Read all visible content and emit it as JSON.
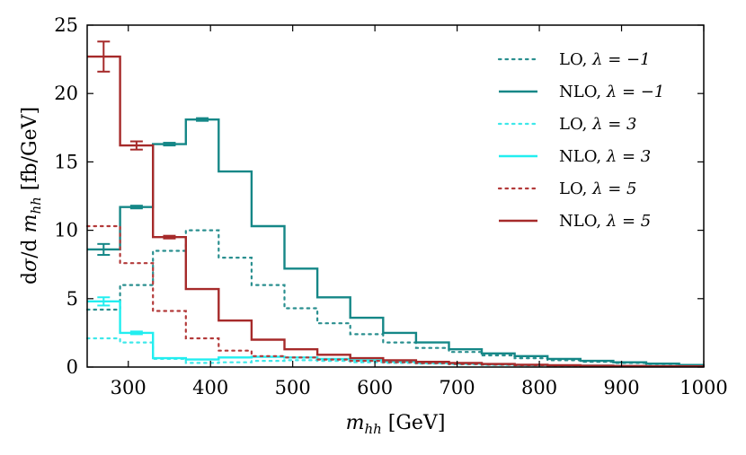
{
  "chart_data": {
    "type": "line",
    "style": "step-histogram",
    "xlabel": "m_hh [GeV]",
    "ylabel": "dσ/d m_hh [fb/GeV]",
    "xlim": [
      250,
      1000
    ],
    "ylim": [
      0,
      25
    ],
    "xticks": [
      300,
      400,
      500,
      600,
      700,
      800,
      900,
      1000
    ],
    "yticks": [
      0,
      5,
      10,
      15,
      20,
      25
    ],
    "grid": false,
    "legend_position": "top-right",
    "bin_edges": [
      250,
      290,
      330,
      370,
      410,
      450,
      490,
      530,
      570,
      610,
      650,
      690,
      730,
      770,
      810,
      850,
      890,
      930,
      970,
      1000
    ],
    "series": [
      {
        "name": "LO, λ = −1",
        "label_main": "LO,",
        "label_lambda": "λ = −1",
        "color": "#2a8f8f",
        "dashed": true,
        "values": [
          4.2,
          6.0,
          8.5,
          10.0,
          8.0,
          6.0,
          4.3,
          3.2,
          2.4,
          1.8,
          1.4,
          1.1,
          0.85,
          0.65,
          0.5,
          0.38,
          0.3,
          0.22,
          0.15
        ]
      },
      {
        "name": "NLO, λ = −1",
        "label_main": "NLO,",
        "label_lambda": "λ = −1",
        "color": "#158787",
        "dashed": false,
        "values": [
          8.6,
          11.7,
          16.3,
          18.1,
          14.3,
          10.3,
          7.2,
          5.1,
          3.6,
          2.5,
          1.8,
          1.3,
          1.0,
          0.8,
          0.6,
          0.45,
          0.35,
          0.25,
          0.15
        ],
        "errors": [
          0.4,
          0.1,
          0.1,
          0.1,
          0,
          0,
          0,
          0,
          0,
          0,
          0,
          0,
          0,
          0,
          0,
          0,
          0,
          0,
          0
        ]
      },
      {
        "name": "LO, λ = 3",
        "label_main": "LO,",
        "label_lambda": "λ = 3",
        "color": "#3ee8ea",
        "dashed": true,
        "values": [
          2.1,
          1.8,
          0.6,
          0.3,
          0.35,
          0.45,
          0.5,
          0.45,
          0.35,
          0.3,
          0.25,
          0.2,
          0.15,
          0.12,
          0.1,
          0.08,
          0.06,
          0.05,
          0.04
        ]
      },
      {
        "name": "NLO, λ = 3",
        "label_main": "NLO,",
        "label_lambda": "λ = 3",
        "color": "#22eef0",
        "dashed": false,
        "values": [
          4.8,
          2.5,
          0.65,
          0.55,
          0.7,
          0.75,
          0.7,
          0.6,
          0.5,
          0.4,
          0.3,
          0.25,
          0.2,
          0.15,
          0.12,
          0.1,
          0.08,
          0.06,
          0.05
        ],
        "errors": [
          0.3,
          0.1,
          0,
          0,
          0,
          0,
          0,
          0,
          0,
          0,
          0,
          0,
          0,
          0,
          0,
          0,
          0,
          0,
          0
        ]
      },
      {
        "name": "LO, λ = 5",
        "label_main": "LO,",
        "label_lambda": "λ = 5",
        "color": "#b33a3a",
        "dashed": true,
        "values": [
          10.3,
          7.6,
          4.1,
          2.1,
          1.2,
          0.8,
          0.7,
          0.55,
          0.45,
          0.35,
          0.28,
          0.22,
          0.18,
          0.14,
          0.11,
          0.09,
          0.07,
          0.05,
          0.04
        ]
      },
      {
        "name": "NLO, λ = 5",
        "label_main": "NLO,",
        "label_lambda": "λ = 5",
        "color": "#a62a2a",
        "dashed": false,
        "values": [
          22.7,
          16.2,
          9.5,
          5.7,
          3.4,
          2.0,
          1.3,
          0.9,
          0.65,
          0.5,
          0.38,
          0.3,
          0.22,
          0.17,
          0.13,
          0.1,
          0.08,
          0.06,
          0.05
        ],
        "errors": [
          1.1,
          0.3,
          0.1,
          0,
          0,
          0,
          0,
          0,
          0,
          0,
          0,
          0,
          0,
          0,
          0,
          0,
          0,
          0,
          0
        ]
      }
    ]
  }
}
